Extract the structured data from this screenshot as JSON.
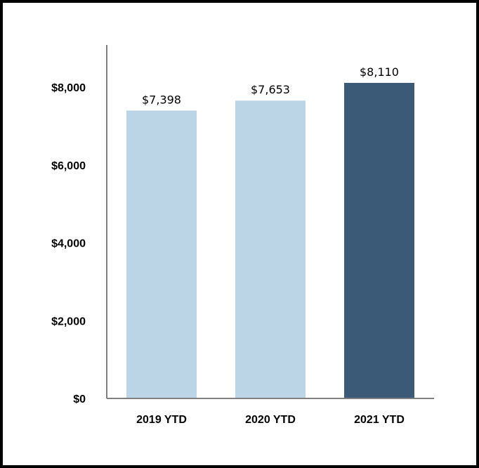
{
  "chart_data": {
    "type": "bar",
    "title": "",
    "xlabel": "",
    "ylabel": "",
    "categories": [
      "2019 YTD",
      "2020 YTD",
      "2021 YTD"
    ],
    "values": [
      7398,
      7653,
      8110
    ],
    "value_labels": [
      "$7,398",
      "$7,653",
      "$8,110"
    ],
    "bar_colors": [
      "#bcd5e6",
      "#bcd5e6",
      "#3a5a78"
    ],
    "ylim": [
      0,
      9000
    ],
    "yticks": [
      0,
      2000,
      4000,
      6000,
      8000
    ],
    "ytick_labels": [
      "$0",
      "$2,000",
      "$4,000",
      "$6,000",
      "$8,000"
    ],
    "grid": false,
    "legend": "none"
  }
}
